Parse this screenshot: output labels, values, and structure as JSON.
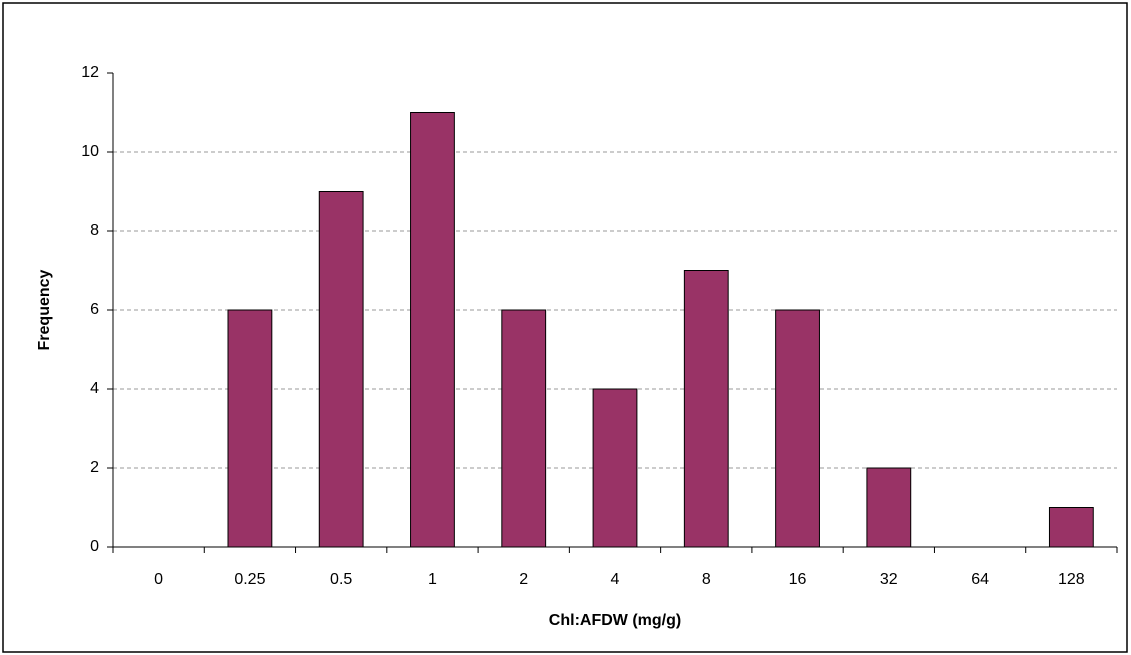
{
  "chart_data": {
    "type": "bar",
    "x_label": "Chl:AFDW (mg/g)",
    "y_label": "Frequency",
    "categories": [
      "0",
      "0.25",
      "0.5",
      "1",
      "2",
      "4",
      "8",
      "16",
      "32",
      "64",
      "128"
    ],
    "values": [
      0,
      6,
      9,
      11,
      6,
      4,
      7,
      6,
      2,
      0,
      1
    ],
    "color": "#993366",
    "ylim": [
      0,
      12
    ],
    "yticks": [
      0,
      2,
      4,
      6,
      8,
      10,
      12
    ],
    "grid": true
  }
}
